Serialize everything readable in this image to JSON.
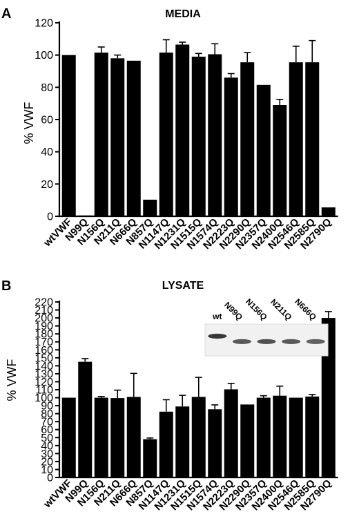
{
  "chart_data": [
    {
      "panel": "A",
      "title": "MEDIA",
      "type": "bar",
      "ylabel": "% VWF",
      "ylim": [
        0,
        120
      ],
      "yticks": [
        0,
        20,
        40,
        60,
        80,
        100,
        120
      ],
      "categories": [
        "wtVWF",
        "N99Q",
        "N156Q",
        "N211Q",
        "N666Q",
        "N857Q",
        "N1147Q",
        "N1231Q",
        "N1515Q",
        "N1574Q",
        "N2223Q",
        "N2290Q",
        "N2357Q",
        "N2400Q",
        "N2546Q",
        "N2585Q",
        "N2790Q"
      ],
      "values": [
        100,
        0.5,
        101.5,
        98,
        96.5,
        10.3,
        101.5,
        106.5,
        99,
        100.5,
        86,
        95.5,
        81.5,
        69,
        95.5,
        95.5,
        5.5
      ],
      "error": [
        0,
        0,
        3.5,
        2,
        0,
        0,
        8,
        1.5,
        2,
        6.5,
        2.5,
        6,
        0,
        3.5,
        10,
        13.5,
        0
      ]
    },
    {
      "panel": "B",
      "title": "LYSATE",
      "type": "bar",
      "ylabel": "% VWF",
      "ylim": [
        0,
        220
      ],
      "yticks": [
        0,
        10,
        20,
        30,
        40,
        50,
        60,
        70,
        80,
        90,
        100,
        110,
        120,
        130,
        140,
        150,
        160,
        170,
        180,
        190,
        200,
        210,
        220
      ],
      "categories": [
        "wtVWF",
        "N99Q",
        "N156Q",
        "N211Q",
        "N666Q",
        "N857Q",
        "N1147Q",
        "N1231Q",
        "N1515Q",
        "N1574Q",
        "N2223Q",
        "N2290Q",
        "N2357Q",
        "N2400Q",
        "N2546Q",
        "N2585Q",
        "N2790Q"
      ],
      "values": [
        100,
        145,
        100,
        99.5,
        101,
        48,
        82.5,
        89,
        101,
        85.5,
        110.5,
        91.5,
        100,
        102.5,
        100,
        101.5,
        200
      ],
      "error": [
        0,
        4,
        1.5,
        10,
        29.5,
        1.5,
        15,
        14,
        24.5,
        5.5,
        7.5,
        0,
        2.5,
        12,
        0,
        2.5,
        8
      ],
      "inset": {
        "lanes": [
          "wt",
          "N99Q",
          "N156Q",
          "N211Q",
          "N666Q"
        ],
        "band_intensity": [
          1.0,
          0.8,
          0.85,
          0.8,
          0.75
        ]
      }
    }
  ]
}
